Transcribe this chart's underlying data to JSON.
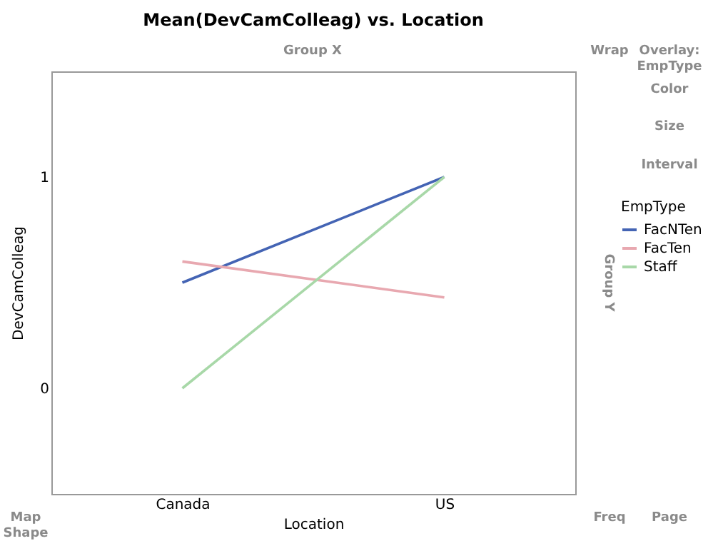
{
  "chart_data": {
    "type": "line",
    "title": "Mean(DevCamColleag) vs. Location",
    "xlabel": "Location",
    "ylabel": "DevCamColleag",
    "legend_title": "EmpType",
    "categories": [
      "Canada",
      "US"
    ],
    "series": [
      {
        "name": "FacNTen",
        "color": "#4464b4",
        "values": [
          0.5,
          1
        ]
      },
      {
        "name": "FacTen",
        "color": "#e8a8b0",
        "values": [
          0.6,
          0.43
        ]
      },
      {
        "name": "Staff",
        "color": "#a8d8a8",
        "values": [
          0,
          1
        ]
      }
    ],
    "ylim": [
      -0.5,
      1.5
    ],
    "yticks": [
      0,
      1
    ],
    "grid": false,
    "legend": "right",
    "marker": "none",
    "line_style": "solid",
    "annotations": [
      "Group X",
      "Wrap",
      "Overlay: EmpType",
      "Color",
      "Size",
      "Interval",
      "Group Y",
      "Map Shape",
      "Freq",
      "Page"
    ]
  }
}
